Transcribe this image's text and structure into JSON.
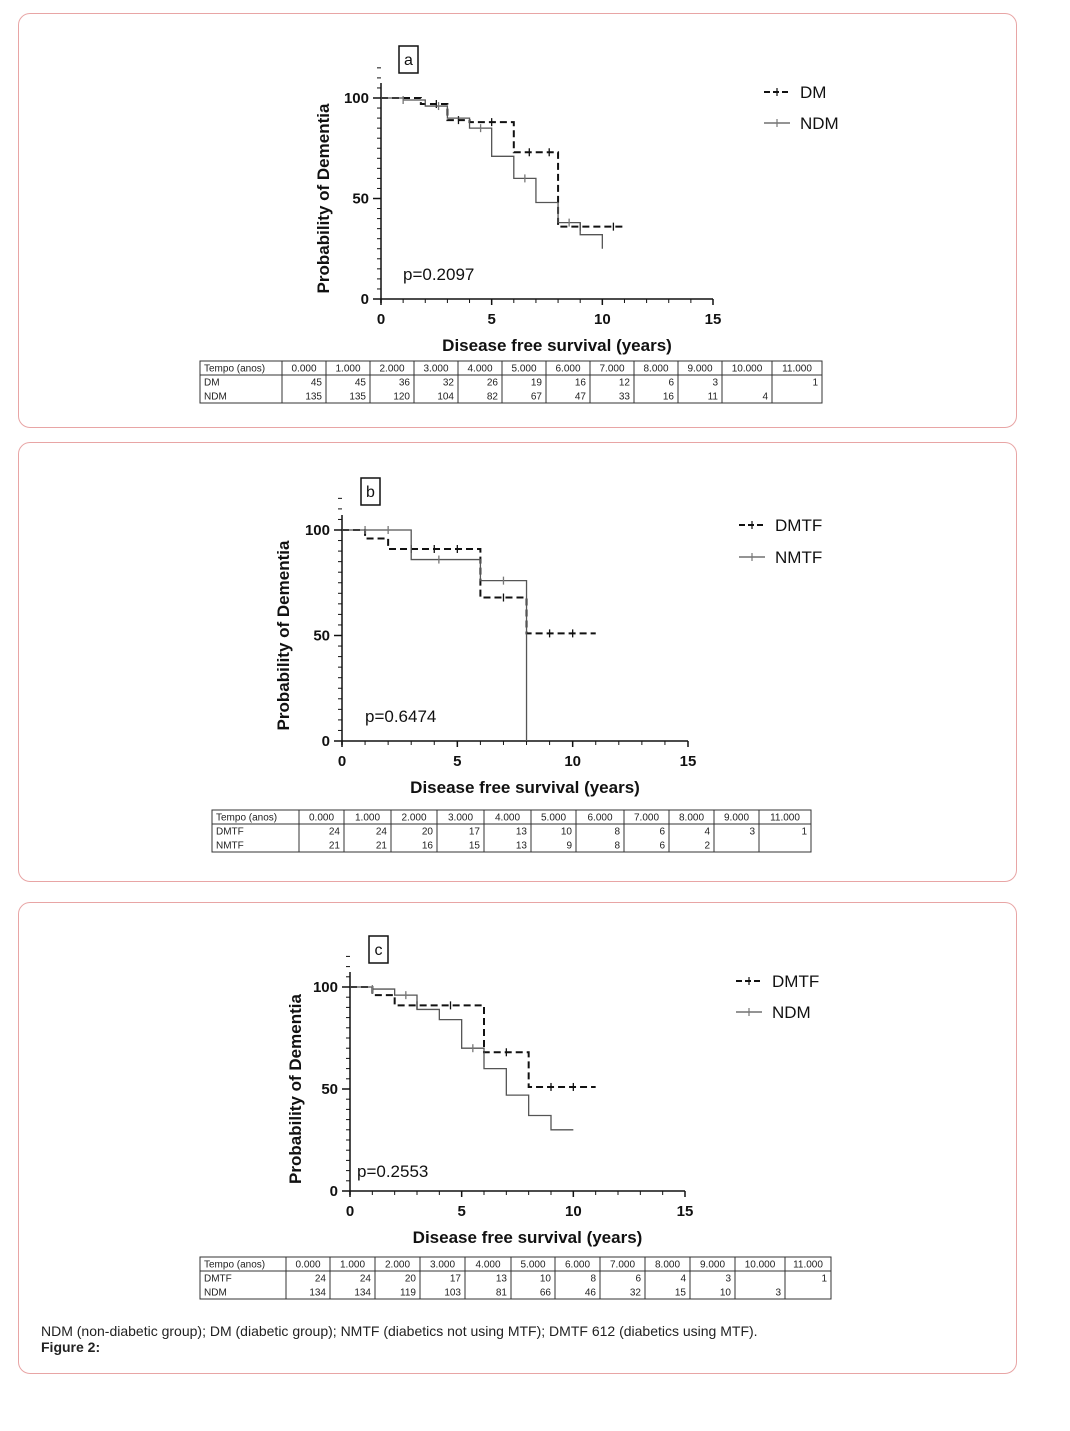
{
  "caption": {
    "text": "NDM (non-diabetic group); DM (diabetic group); NMTF (diabetics not using MTF); DMTF 612 (diabetics using MTF).",
    "figure": "Figure 2:"
  },
  "chart_data": [
    {
      "type": "line",
      "subtype": "kaplan-meier",
      "panel_label": "a",
      "ylabel": "Probability of Dementia",
      "xlabel": "Disease free survival (years)",
      "xlim": [
        0,
        15
      ],
      "ylim": [
        0,
        100
      ],
      "xticks": [
        0,
        5,
        10,
        15
      ],
      "yticks": [
        0,
        50,
        100
      ],
      "p_value": "p=0.2097",
      "legend_position": "top-right",
      "series": [
        {
          "name": "DM",
          "style": "dashed",
          "steps": [
            [
              0,
              100
            ],
            [
              1.8,
              100
            ],
            [
              1.8,
              97
            ],
            [
              3,
              97
            ],
            [
              3,
              89
            ],
            [
              4,
              89
            ],
            [
              4,
              88
            ],
            [
              6,
              88
            ],
            [
              6,
              73
            ],
            [
              8,
              73
            ],
            [
              8,
              36
            ],
            [
              11,
              36
            ]
          ],
          "censor_x": [
            2.5,
            3.5,
            5,
            6.7,
            7.6,
            9,
            10.5
          ]
        },
        {
          "name": "NDM",
          "style": "solid",
          "steps": [
            [
              0,
              100
            ],
            [
              1,
              100
            ],
            [
              1,
              99
            ],
            [
              2,
              99
            ],
            [
              2,
              96
            ],
            [
              3,
              96
            ],
            [
              3,
              90
            ],
            [
              4,
              90
            ],
            [
              4,
              85
            ],
            [
              5,
              85
            ],
            [
              5,
              71
            ],
            [
              6,
              71
            ],
            [
              6,
              60
            ],
            [
              7,
              60
            ],
            [
              7,
              48
            ],
            [
              8,
              48
            ],
            [
              8,
              38
            ],
            [
              9,
              38
            ],
            [
              9,
              32
            ],
            [
              10,
              32
            ],
            [
              10,
              25
            ]
          ],
          "censor_x": [
            1,
            2.6,
            4.5,
            6.5,
            8.5
          ]
        }
      ],
      "table": {
        "header": [
          "Tempo (anos)",
          "0.000",
          "1.000",
          "2.000",
          "3.000",
          "4.000",
          "5.000",
          "6.000",
          "7.000",
          "8.000",
          "9.000",
          "10.000",
          "11.000"
        ],
        "rows": [
          [
            "DM",
            "45",
            "45",
            "36",
            "32",
            "26",
            "19",
            "16",
            "12",
            "6",
            "3",
            "",
            "1"
          ],
          [
            "NDM",
            "135",
            "135",
            "120",
            "104",
            "82",
            "67",
            "47",
            "33",
            "16",
            "11",
            "4",
            ""
          ]
        ]
      }
    },
    {
      "type": "line",
      "subtype": "kaplan-meier",
      "panel_label": "b",
      "ylabel": "Probability of Dementia",
      "xlabel": "Disease free survival (years)",
      "xlim": [
        0,
        15
      ],
      "ylim": [
        0,
        100
      ],
      "xticks": [
        0,
        5,
        10,
        15
      ],
      "yticks": [
        0,
        50,
        100
      ],
      "p_value": "p=0.6474",
      "legend_position": "top-right",
      "series": [
        {
          "name": "DMTF",
          "style": "dashed",
          "steps": [
            [
              0,
              100
            ],
            [
              1,
              100
            ],
            [
              1,
              96
            ],
            [
              2,
              96
            ],
            [
              2,
              91
            ],
            [
              6,
              91
            ],
            [
              6,
              68
            ],
            [
              8,
              68
            ],
            [
              8,
              51
            ],
            [
              11,
              51
            ]
          ],
          "censor_x": [
            3,
            4,
            5,
            7,
            9,
            10
          ]
        },
        {
          "name": "NMTF",
          "style": "solid",
          "steps": [
            [
              0,
              100
            ],
            [
              3,
              100
            ],
            [
              3,
              86
            ],
            [
              6,
              86
            ],
            [
              6,
              76
            ],
            [
              8,
              76
            ],
            [
              8,
              0
            ]
          ],
          "censor_x": [
            1,
            2,
            4.2,
            7
          ]
        }
      ],
      "table": {
        "header": [
          "Tempo (anos)",
          "0.000",
          "1.000",
          "2.000",
          "3.000",
          "4.000",
          "5.000",
          "6.000",
          "7.000",
          "8.000",
          "9.000",
          "11.000"
        ],
        "rows": [
          [
            "DMTF",
            "24",
            "24",
            "20",
            "17",
            "13",
            "10",
            "8",
            "6",
            "4",
            "3",
            "1"
          ],
          [
            "NMTF",
            "21",
            "21",
            "16",
            "15",
            "13",
            "9",
            "8",
            "6",
            "2",
            "",
            ""
          ]
        ]
      }
    },
    {
      "type": "line",
      "subtype": "kaplan-meier",
      "panel_label": "c",
      "ylabel": "Probability of Dementia",
      "xlabel": "Disease free survival (years)",
      "xlim": [
        0,
        15
      ],
      "ylim": [
        0,
        100
      ],
      "xticks": [
        0,
        5,
        10,
        15
      ],
      "yticks": [
        0,
        50,
        100
      ],
      "p_value": "p=0.2553",
      "legend_position": "top-right",
      "series": [
        {
          "name": "DMTF",
          "style": "dashed",
          "steps": [
            [
              0,
              100
            ],
            [
              1,
              100
            ],
            [
              1,
              96
            ],
            [
              2,
              96
            ],
            [
              2,
              91
            ],
            [
              6,
              91
            ],
            [
              6,
              68
            ],
            [
              8,
              68
            ],
            [
              8,
              51
            ],
            [
              11,
              51
            ]
          ],
          "censor_x": [
            3,
            4.5,
            7,
            9,
            10
          ]
        },
        {
          "name": "NDM",
          "style": "solid",
          "steps": [
            [
              0,
              100
            ],
            [
              1,
              100
            ],
            [
              1,
              99
            ],
            [
              2,
              99
            ],
            [
              2,
              96
            ],
            [
              3,
              96
            ],
            [
              3,
              89
            ],
            [
              4,
              89
            ],
            [
              4,
              84
            ],
            [
              5,
              84
            ],
            [
              5,
              70
            ],
            [
              6,
              70
            ],
            [
              6,
              60
            ],
            [
              7,
              60
            ],
            [
              7,
              47
            ],
            [
              8,
              47
            ],
            [
              8,
              37
            ],
            [
              9,
              37
            ],
            [
              9,
              30
            ],
            [
              10,
              30
            ]
          ],
          "censor_x": [
            1,
            2.5,
            5.5
          ]
        }
      ],
      "table": {
        "header": [
          "Tempo (anos)",
          "0.000",
          "1.000",
          "2.000",
          "3.000",
          "4.000",
          "5.000",
          "6.000",
          "7.000",
          "8.000",
          "9.000",
          "10.000",
          "11.000"
        ],
        "rows": [
          [
            "DMTF",
            "24",
            "24",
            "20",
            "17",
            "13",
            "10",
            "8",
            "6",
            "4",
            "3",
            "",
            "1"
          ],
          [
            "NDM",
            "134",
            "134",
            "119",
            "103",
            "81",
            "66",
            "46",
            "32",
            "15",
            "10",
            "3",
            ""
          ]
        ]
      }
    }
  ]
}
